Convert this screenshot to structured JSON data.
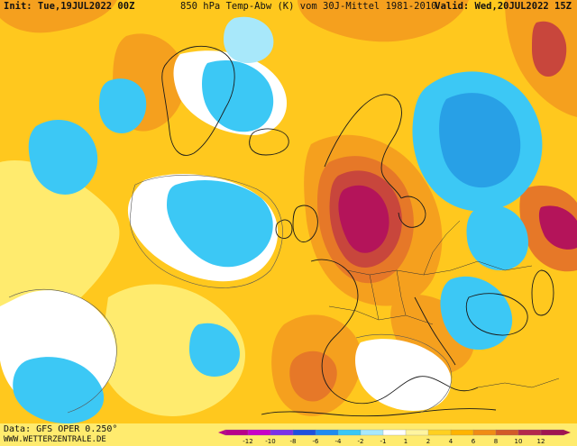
{
  "header": {
    "init": "Init: Tue,19JUL2022 00Z",
    "title": "850 hPa Temp-Abw (K) vom 30J-Mittel 1981-2010",
    "valid": "Valid: Wed,20JUL2022 15Z"
  },
  "footer": {
    "data_source": "Data: GFS OPER 0.250°",
    "website": "WWW.WETTERZENTRALE.DE"
  },
  "legend": {
    "ticks": [
      "-12",
      "-10",
      "-8",
      "-6",
      "-4",
      "-2",
      "-1",
      "1",
      "2",
      "4",
      "6",
      "8",
      "10",
      "12"
    ],
    "colors": [
      "#b8008a",
      "#c800c8",
      "#7a32e6",
      "#1e50dc",
      "#1e8cf0",
      "#38c8f5",
      "#a8e8fa",
      "#ffffff",
      "#fff5a0",
      "#ffd020",
      "#ffb400",
      "#f08c14",
      "#d25a28",
      "#b4284b",
      "#a01450"
    ]
  },
  "map_colors": {
    "background": "#ffffff",
    "warm_light": "#ffeb6e",
    "warm": "#ffc81e",
    "warm_strong": "#f5a01e",
    "hot": "#e67828",
    "very_hot": "#c8463c",
    "extreme": "#b4145a",
    "cold_light": "#a8e8fa",
    "cold": "#3cc8f5",
    "cold_strong": "#28a0e6",
    "coastline": "#1a1a1a"
  }
}
